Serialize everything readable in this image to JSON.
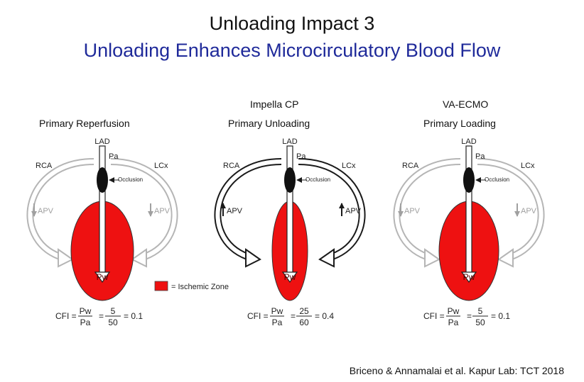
{
  "title": "Unloading Impact 3",
  "subtitle": "Unloading Enhances Microcirculatory Blood Flow",
  "device_labels": [
    "Impella CP",
    "VA-ECMO"
  ],
  "panel_headers": [
    "Primary Reperfusion",
    "Primary Unloading",
    "Primary Loading"
  ],
  "labels": {
    "lad": "LAD",
    "pa": "Pa",
    "rca": "RCA",
    "lcx": "LCx",
    "occlusion": "Occlusion",
    "apv": "APV",
    "pw": "Pw",
    "cfi": "CFI ="
  },
  "legend": "= Ischemic Zone",
  "panels": [
    {
      "pw_val": "5",
      "pa_val": "50",
      "cfi_result": "= 0.1",
      "flow": "low"
    },
    {
      "pw_val": "25",
      "pa_val": "60",
      "cfi_result": "= 0.4",
      "flow": "high"
    },
    {
      "pw_val": "5",
      "pa_val": "50",
      "cfi_result": "= 0.1",
      "flow": "low"
    }
  ],
  "citation": "Briceno & Annamalai et al. Kapur Lab: TCT 2018",
  "colors": {
    "ischemic": "#ee1111",
    "title": "#111111",
    "subtitle": "#1f2a9a",
    "inactive": "#b5b5b5",
    "active": "#1a1a1a"
  }
}
